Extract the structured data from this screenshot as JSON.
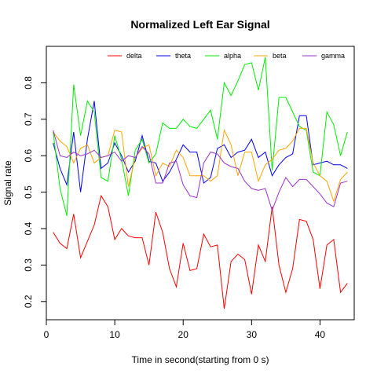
{
  "chart_data": {
    "type": "line",
    "title": "Normalized Left Ear Signal",
    "xlabel": "Time in second(starting from 0 s)",
    "ylabel": "Signal rate",
    "xlim": [
      0,
      45
    ],
    "ylim": [
      0.15,
      0.9
    ],
    "xticks": [
      0,
      10,
      20,
      30,
      40
    ],
    "yticks": [
      0.2,
      0.3,
      0.4,
      0.5,
      0.6,
      0.7,
      0.8
    ],
    "grid": false,
    "legend_position": "top",
    "x": [
      1,
      2,
      3,
      4,
      5,
      6,
      7,
      8,
      9,
      10,
      11,
      12,
      13,
      14,
      15,
      16,
      17,
      18,
      19,
      20,
      21,
      22,
      23,
      24,
      25,
      26,
      27,
      28,
      29,
      30,
      31,
      32,
      33,
      34,
      35,
      36,
      37,
      38,
      39,
      40,
      41,
      42,
      43,
      44
    ],
    "series": [
      {
        "name": "delta",
        "color": "#ff0000",
        "values": [
          0.39,
          0.36,
          0.345,
          0.44,
          0.32,
          0.365,
          0.41,
          0.49,
          0.46,
          0.37,
          0.4,
          0.38,
          0.375,
          0.375,
          0.3,
          0.445,
          0.39,
          0.29,
          0.24,
          0.36,
          0.285,
          0.29,
          0.385,
          0.35,
          0.355,
          0.18,
          0.31,
          0.33,
          0.315,
          0.22,
          0.355,
          0.31,
          0.46,
          0.3,
          0.225,
          0.29,
          0.425,
          0.42,
          0.37,
          0.235,
          0.355,
          0.37,
          0.225,
          0.25
        ]
      },
      {
        "name": "theta",
        "color": "#0000ff",
        "values": [
          0.635,
          0.565,
          0.52,
          0.665,
          0.5,
          0.645,
          0.75,
          0.565,
          0.58,
          0.635,
          0.6,
          0.555,
          0.585,
          0.655,
          0.585,
          0.58,
          0.53,
          0.555,
          0.59,
          0.63,
          0.61,
          0.61,
          0.525,
          0.54,
          0.62,
          0.63,
          0.595,
          0.61,
          0.615,
          0.645,
          0.595,
          0.61,
          0.545,
          0.575,
          0.595,
          0.605,
          0.71,
          0.71,
          0.575,
          0.58,
          0.585,
          0.575,
          0.575,
          0.565
        ]
      },
      {
        "name": "alpha",
        "color": "#00ee00",
        "values": [
          0.665,
          0.51,
          0.435,
          0.795,
          0.655,
          0.75,
          0.72,
          0.54,
          0.53,
          0.655,
          0.59,
          0.49,
          0.615,
          0.645,
          0.58,
          0.605,
          0.69,
          0.675,
          0.675,
          0.7,
          0.68,
          0.675,
          0.7,
          0.725,
          0.645,
          0.8,
          0.765,
          0.805,
          0.85,
          0.855,
          0.78,
          0.87,
          0.56,
          0.76,
          0.76,
          0.72,
          0.68,
          0.67,
          0.555,
          0.545,
          0.72,
          0.685,
          0.6,
          0.665
        ]
      },
      {
        "name": "beta",
        "color": "#ffa500",
        "values": [
          0.665,
          0.64,
          0.625,
          0.58,
          0.62,
          0.63,
          0.58,
          0.595,
          0.6,
          0.67,
          0.665,
          0.515,
          0.595,
          0.62,
          0.63,
          0.545,
          0.58,
          0.57,
          0.615,
          0.595,
          0.545,
          0.545,
          0.545,
          0.53,
          0.545,
          0.67,
          0.63,
          0.545,
          0.61,
          0.61,
          0.53,
          0.575,
          0.59,
          0.615,
          0.62,
          0.64,
          0.675,
          0.675,
          0.58,
          0.545,
          0.53,
          0.475,
          0.535,
          0.555
        ]
      },
      {
        "name": "gamma",
        "color": "#9932cc",
        "values": [
          0.67,
          0.6,
          0.595,
          0.61,
          0.6,
          0.605,
          0.615,
          0.595,
          0.6,
          0.61,
          0.585,
          0.6,
          0.595,
          0.625,
          0.605,
          0.525,
          0.525,
          0.58,
          0.585,
          0.52,
          0.49,
          0.485,
          0.58,
          0.61,
          0.605,
          0.58,
          0.57,
          0.565,
          0.53,
          0.51,
          0.505,
          0.51,
          0.45,
          0.5,
          0.54,
          0.515,
          0.535,
          0.535,
          0.515,
          0.495,
          0.47,
          0.46,
          0.525,
          0.53
        ]
      }
    ]
  }
}
